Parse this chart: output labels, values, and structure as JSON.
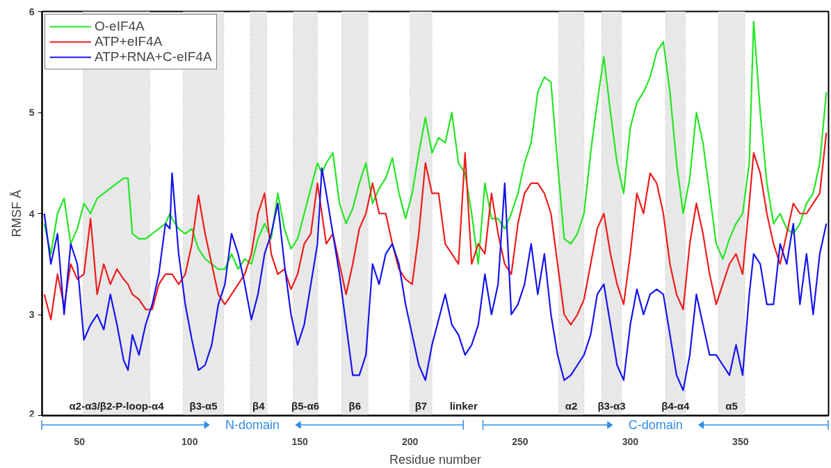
{
  "chart_data": {
    "type": "line",
    "xlabel": "Residue number",
    "ylabel": "RMSF Å",
    "x": [
      34,
      37,
      40,
      43,
      46,
      49,
      52,
      55,
      58,
      61,
      64,
      67,
      70,
      72,
      74,
      77,
      80,
      83,
      86,
      89,
      91,
      92,
      95,
      98,
      101,
      104,
      107,
      110,
      113,
      116,
      119,
      122,
      125,
      128,
      131,
      134,
      137,
      140,
      143,
      146,
      149,
      152,
      155,
      158,
      160,
      162,
      165,
      168,
      171,
      174,
      177,
      180,
      183,
      186,
      189,
      192,
      195,
      198,
      201,
      204,
      207,
      210,
      213,
      216,
      219,
      222,
      225,
      228,
      231,
      234,
      237,
      240,
      243,
      246,
      249,
      252,
      255,
      258,
      261,
      264,
      267,
      270,
      273,
      276,
      279,
      282,
      285,
      288,
      291,
      294,
      297,
      300,
      303,
      306,
      309,
      312,
      315,
      318,
      321,
      324,
      327,
      330,
      333,
      336,
      339,
      342,
      345,
      348,
      351,
      354,
      356,
      359,
      362,
      365,
      368,
      371,
      374,
      377,
      380,
      383,
      386,
      389
    ],
    "series": [
      {
        "name": "O-eIF4A",
        "color": "#22e622",
        "values": [
          3.9,
          3.6,
          4.0,
          4.15,
          3.7,
          3.85,
          4.1,
          4.0,
          4.15,
          4.2,
          4.25,
          4.3,
          4.35,
          4.35,
          3.8,
          3.75,
          3.75,
          3.8,
          3.85,
          3.9,
          4.0,
          3.95,
          3.85,
          3.8,
          3.85,
          3.65,
          3.55,
          3.5,
          3.45,
          3.45,
          3.6,
          3.45,
          3.55,
          3.5,
          3.75,
          3.9,
          3.75,
          4.2,
          3.85,
          3.65,
          3.75,
          4.0,
          4.25,
          4.5,
          4.4,
          4.5,
          4.6,
          4.1,
          3.9,
          4.05,
          4.3,
          4.5,
          4.1,
          4.25,
          4.35,
          4.55,
          4.2,
          3.95,
          4.2,
          4.6,
          4.95,
          4.6,
          4.75,
          4.7,
          5.0,
          4.5,
          4.4,
          4.0,
          3.5,
          4.3,
          3.95,
          3.95,
          3.85,
          4.0,
          4.2,
          4.5,
          4.7,
          5.2,
          5.35,
          5.3,
          4.5,
          3.75,
          3.7,
          3.8,
          4.0,
          4.6,
          5.1,
          5.55,
          5.0,
          4.5,
          4.2,
          4.85,
          5.1,
          5.2,
          5.35,
          5.6,
          5.7,
          5.2,
          4.5,
          4.0,
          4.35,
          5.0,
          4.7,
          4.2,
          3.7,
          3.55,
          3.75,
          3.9,
          4.0,
          4.5,
          5.9,
          5.0,
          4.3,
          3.9,
          4.0,
          3.85,
          3.8,
          3.9,
          4.1,
          4.2,
          4.5,
          5.2
        ]
      },
      {
        "name": "ATP+eIF4A",
        "color": "#ee1c1c",
        "values": [
          3.2,
          2.95,
          3.4,
          3.08,
          3.5,
          3.35,
          3.4,
          3.95,
          3.2,
          3.5,
          3.3,
          3.45,
          3.35,
          3.3,
          3.2,
          3.15,
          3.05,
          3.05,
          3.3,
          3.4,
          3.4,
          3.4,
          3.3,
          3.4,
          3.7,
          4.18,
          3.8,
          3.5,
          3.2,
          3.1,
          3.2,
          3.3,
          3.4,
          3.6,
          4.0,
          4.2,
          3.6,
          3.4,
          3.45,
          3.25,
          3.4,
          3.7,
          3.8,
          4.3,
          4.0,
          3.7,
          3.8,
          3.5,
          3.2,
          3.5,
          3.85,
          4.0,
          4.3,
          4.0,
          4.0,
          3.7,
          3.45,
          3.35,
          3.3,
          3.8,
          4.5,
          4.2,
          4.2,
          3.7,
          3.6,
          3.5,
          4.6,
          3.5,
          3.7,
          3.6,
          4.2,
          3.8,
          3.5,
          3.4,
          3.9,
          4.2,
          4.3,
          4.3,
          4.2,
          4.0,
          3.5,
          3.0,
          2.9,
          3.0,
          3.15,
          3.5,
          3.85,
          4.0,
          3.6,
          3.3,
          3.1,
          3.6,
          4.2,
          4.0,
          4.4,
          4.3,
          4.0,
          3.5,
          3.2,
          3.05,
          3.7,
          4.1,
          3.8,
          3.4,
          3.1,
          3.3,
          3.5,
          3.6,
          3.4,
          4.1,
          4.6,
          4.4,
          4.0,
          3.7,
          3.5,
          3.8,
          4.1,
          4.0,
          4.0,
          4.1,
          4.2,
          4.8
        ]
      },
      {
        "name": "ATP+RNA+C-eIF4A",
        "color": "#1414ee",
        "values": [
          4.0,
          3.5,
          3.8,
          3.0,
          3.7,
          3.5,
          2.75,
          2.9,
          3.0,
          2.85,
          3.2,
          2.9,
          2.55,
          2.45,
          2.8,
          2.6,
          2.9,
          3.1,
          3.4,
          3.9,
          3.85,
          4.4,
          3.6,
          3.1,
          2.75,
          2.45,
          2.5,
          2.7,
          3.1,
          3.3,
          3.8,
          3.6,
          3.3,
          2.95,
          3.2,
          3.6,
          3.8,
          4.1,
          3.5,
          3.0,
          2.7,
          2.9,
          3.3,
          3.7,
          4.45,
          4.2,
          3.8,
          3.4,
          2.9,
          2.4,
          2.4,
          2.6,
          3.5,
          3.3,
          3.6,
          3.7,
          3.5,
          3.1,
          2.8,
          2.5,
          2.35,
          2.7,
          2.95,
          3.2,
          2.9,
          2.8,
          2.6,
          2.7,
          2.9,
          3.4,
          3.0,
          3.3,
          4.3,
          3.0,
          3.1,
          3.3,
          3.7,
          3.2,
          3.6,
          3.0,
          2.6,
          2.35,
          2.4,
          2.5,
          2.6,
          2.8,
          3.2,
          3.3,
          2.9,
          2.5,
          2.35,
          2.9,
          3.25,
          3.0,
          3.2,
          3.25,
          3.2,
          2.8,
          2.4,
          2.25,
          2.6,
          3.2,
          2.9,
          2.6,
          2.6,
          2.5,
          2.4,
          2.7,
          2.4,
          3.2,
          3.6,
          3.5,
          3.1,
          3.1,
          3.7,
          3.5,
          3.9,
          3.1,
          3.6,
          3.0,
          3.6,
          3.9
        ]
      }
    ],
    "xlim": [
      33,
      390
    ],
    "ylim": [
      2,
      6
    ],
    "xticks": [
      50,
      100,
      150,
      200,
      250,
      300,
      350
    ],
    "yticks": [
      2,
      3,
      4,
      5,
      6
    ],
    "grid": false,
    "legend": "top left",
    "line_style": "solid",
    "marker": "none",
    "bands": [
      {
        "axis": "x",
        "from": 51.6,
        "to": 82,
        "label": "α2-α3/β2-P-loop-α4",
        "color": "#e8e8e8"
      },
      {
        "axis": "x",
        "from": 97,
        "to": 115.5,
        "label": "β3-α5",
        "color": "#e8e8e8"
      },
      {
        "axis": "x",
        "from": 127.5,
        "to": 135,
        "label": "β4",
        "color": "#e8e8e8"
      },
      {
        "axis": "x",
        "from": 147,
        "to": 158,
        "label": "β5-α6",
        "color": "#e8e8e8"
      },
      {
        "axis": "x",
        "from": 169,
        "to": 181,
        "label": "β6",
        "color": "#e8e8e8"
      },
      {
        "axis": "x",
        "from": 200,
        "to": 210,
        "label": "β7",
        "color": "#e8e8e8"
      },
      {
        "axis": "x",
        "from": 267.5,
        "to": 279,
        "label": "α2",
        "color": "#e8e8e8"
      },
      {
        "axis": "x",
        "from": 287,
        "to": 296,
        "label": "β3-α3",
        "color": "#e8e8e8"
      },
      {
        "axis": "x",
        "from": 316,
        "to": 325,
        "label": "β4-α4",
        "color": "#e8e8e8"
      },
      {
        "axis": "x",
        "from": 340,
        "to": 352,
        "label": "α5",
        "color": "#e8e8e8"
      }
    ],
    "annotations": [
      "linker",
      "N-domain",
      "C-domain"
    ]
  }
}
